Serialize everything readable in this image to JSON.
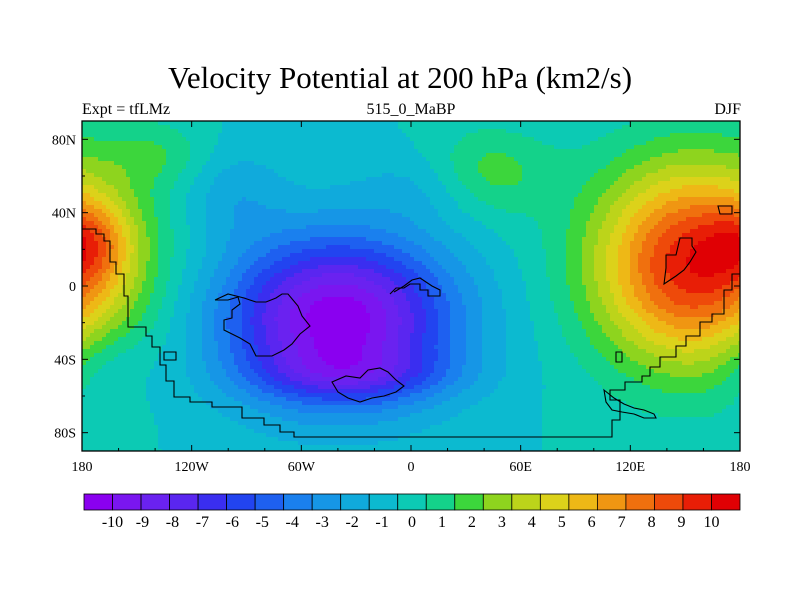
{
  "chart_data": {
    "type": "heatmap",
    "title": "Velocity Potential at 200 hPa (km2/s)",
    "left_label": "Expt = tfLMz",
    "center_label": "515_0_MaBP",
    "right_label": "DJF",
    "x_ticks": [
      "180",
      "120W",
      "60W",
      "0",
      "60E",
      "120E",
      "180"
    ],
    "x_tick_values": [
      -180,
      -120,
      -60,
      0,
      60,
      120,
      180
    ],
    "y_ticks": [
      "80N",
      "40N",
      "0",
      "40S",
      "80S"
    ],
    "y_tick_values": [
      80,
      40,
      0,
      -40,
      -80
    ],
    "xlim": [
      -180,
      180
    ],
    "ylim": [
      -90,
      90
    ],
    "colorbar_labels": [
      "-10",
      "-9",
      "-8",
      "-7",
      "-6",
      "-5",
      "-4",
      "-3",
      "-2",
      "-1",
      "0",
      "1",
      "2",
      "3",
      "4",
      "5",
      "6",
      "7",
      "8",
      "9",
      "10"
    ],
    "colorbar_colors": [
      "#8a00f0",
      "#7a16f0",
      "#6a22f0",
      "#5a26f0",
      "#3a2ef0",
      "#2244f0",
      "#1e60f0",
      "#1a80ee",
      "#1696e6",
      "#10aadc",
      "#0cbad0",
      "#0ccab4",
      "#14d28a",
      "#3cd63c",
      "#8ed41e",
      "#bcd41a",
      "#dcd21a",
      "#eeb816",
      "#f09612",
      "#f0700e",
      "#ee4a0a",
      "#e81e06",
      "#e00004"
    ],
    "field_centers": [
      {
        "name": "pacific-maximum",
        "lon": 150,
        "lat": 15,
        "value": 10.8
      },
      {
        "name": "east-pacific-maximum",
        "lon": -175,
        "lat": 25,
        "value": 9.5
      },
      {
        "name": "south-america-minimum",
        "lon": -40,
        "lat": -15,
        "value": -10.8
      }
    ]
  }
}
